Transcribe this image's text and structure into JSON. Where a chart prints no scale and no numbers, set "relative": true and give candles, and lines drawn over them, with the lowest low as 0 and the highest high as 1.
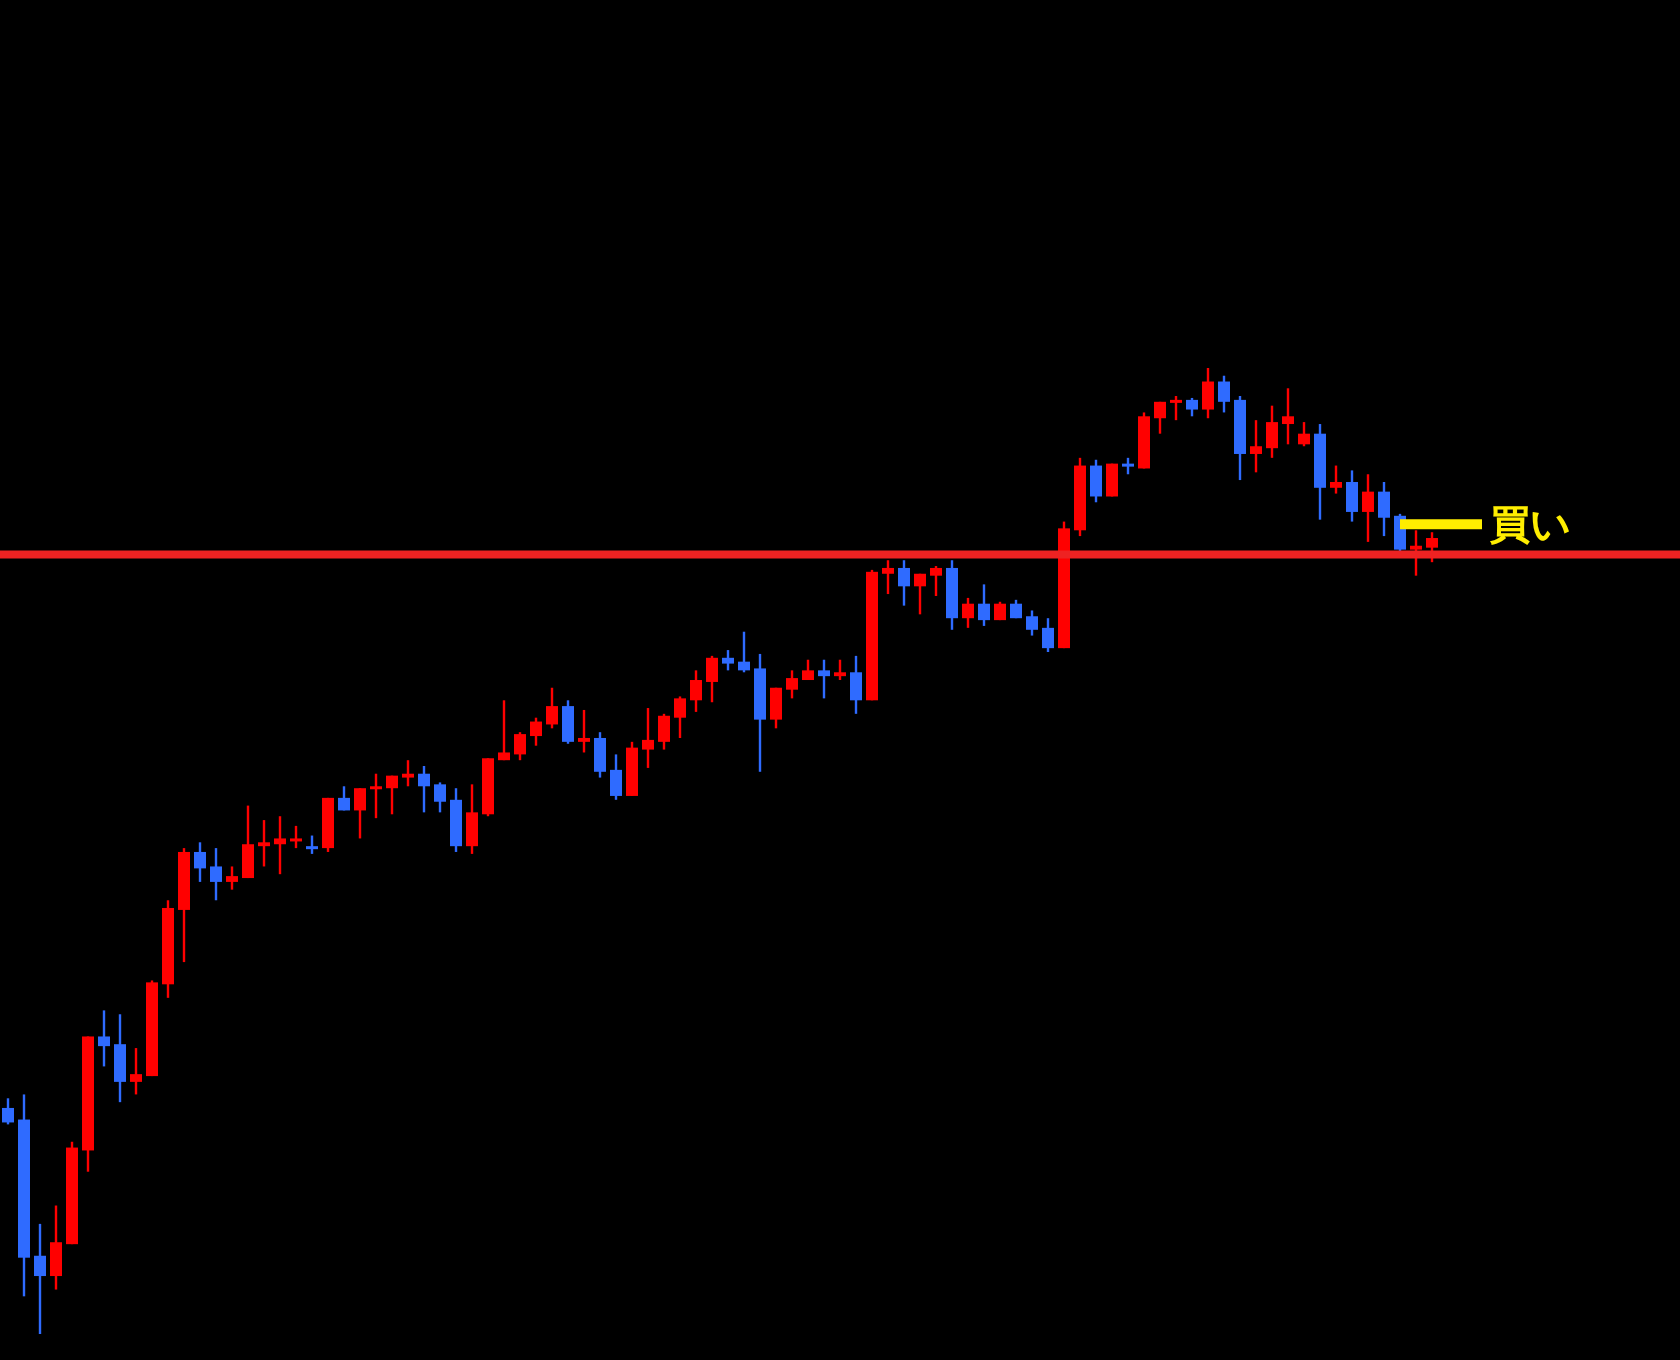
{
  "chart_data": {
    "type": "candlestick",
    "relative": true,
    "categories": [
      null,
      null,
      null,
      null,
      null,
      null,
      null,
      null,
      null,
      null,
      null,
      null,
      null,
      null,
      null,
      null,
      null,
      null,
      null,
      null,
      null,
      null,
      null,
      null,
      null,
      null,
      null,
      null,
      null,
      null,
      null,
      null,
      null,
      null,
      null,
      null,
      null,
      null,
      null,
      null,
      null,
      null,
      null,
      null,
      null,
      null,
      null,
      null,
      null,
      null,
      null,
      null,
      null,
      null,
      null,
      null,
      null,
      null,
      null,
      null,
      null,
      null,
      null,
      null,
      null,
      null,
      null,
      null,
      null,
      null,
      null,
      null,
      null,
      null,
      null,
      null,
      null,
      null,
      null,
      null,
      null,
      null,
      null,
      null,
      null,
      null,
      null,
      null,
      null,
      null
    ],
    "ohlc": [
      [
        0.234,
        0.244,
        0.217,
        0.219
      ],
      [
        0.222,
        0.248,
        0.039,
        0.079
      ],
      [
        0.081,
        0.114,
        0,
        0.06
      ],
      [
        0.06,
        0.133,
        0.046,
        0.095
      ],
      [
        0.093,
        0.199,
        0.093,
        0.193
      ],
      [
        0.19,
        0.308,
        0.168,
        0.308
      ],
      [
        0.308,
        0.335,
        0.277,
        0.298
      ],
      [
        0.3,
        0.331,
        0.24,
        0.261
      ],
      [
        0.261,
        0.296,
        0.248,
        0.269
      ],
      [
        0.267,
        0.366,
        0.267,
        0.364
      ],
      [
        0.362,
        0.449,
        0.348,
        0.441
      ],
      [
        0.439,
        0.503,
        0.385,
        0.499
      ],
      [
        0.499,
        0.509,
        0.468,
        0.482
      ],
      [
        0.484,
        0.503,
        0.449,
        0.468
      ],
      [
        0.468,
        0.484,
        0.46,
        0.474
      ],
      [
        0.472,
        0.547,
        0.472,
        0.507
      ],
      [
        0.505,
        0.532,
        0.484,
        0.509
      ],
      [
        0.507,
        0.536,
        0.476,
        0.513
      ],
      [
        0.511,
        0.526,
        0.503,
        0.513
      ],
      [
        0.505,
        0.516,
        0.497,
        0.503
      ],
      [
        0.503,
        0.555,
        0.499,
        0.555
      ],
      [
        0.555,
        0.567,
        0.542,
        0.542
      ],
      [
        0.542,
        0.565,
        0.513,
        0.565
      ],
      [
        0.565,
        0.58,
        0.534,
        0.567
      ],
      [
        0.565,
        0.578,
        0.538,
        0.578
      ],
      [
        0.576,
        0.594,
        0.567,
        0.58
      ],
      [
        0.58,
        0.588,
        0.54,
        0.567
      ],
      [
        0.569,
        0.571,
        0.54,
        0.551
      ],
      [
        0.553,
        0.565,
        0.499,
        0.505
      ],
      [
        0.505,
        0.569,
        0.497,
        0.54
      ],
      [
        0.538,
        0.596,
        0.536,
        0.596
      ],
      [
        0.594,
        0.656,
        0.594,
        0.602
      ],
      [
        0.6,
        0.623,
        0.594,
        0.621
      ],
      [
        0.619,
        0.638,
        0.609,
        0.634
      ],
      [
        0.631,
        0.669,
        0.627,
        0.65
      ],
      [
        0.65,
        0.656,
        0.611,
        0.613
      ],
      [
        0.613,
        0.646,
        0.602,
        0.617
      ],
      [
        0.617,
        0.623,
        0.576,
        0.582
      ],
      [
        0.584,
        0.6,
        0.553,
        0.557
      ],
      [
        0.557,
        0.613,
        0.557,
        0.607
      ],
      [
        0.605,
        0.648,
        0.586,
        0.615
      ],
      [
        0.613,
        0.642,
        0.605,
        0.64
      ],
      [
        0.638,
        0.66,
        0.617,
        0.658
      ],
      [
        0.656,
        0.687,
        0.644,
        0.677
      ],
      [
        0.675,
        0.702,
        0.654,
        0.7
      ],
      [
        0.7,
        0.708,
        0.687,
        0.694
      ],
      [
        0.696,
        0.727,
        0.685,
        0.687
      ],
      [
        0.689,
        0.704,
        0.582,
        0.636
      ],
      [
        0.636,
        0.669,
        0.627,
        0.669
      ],
      [
        0.667,
        0.687,
        0.658,
        0.679
      ],
      [
        0.677,
        0.698,
        0.677,
        0.687
      ],
      [
        0.687,
        0.698,
        0.658,
        0.681
      ],
      [
        0.681,
        0.698,
        0.677,
        0.685
      ],
      [
        0.685,
        0.702,
        0.642,
        0.656
      ],
      [
        0.656,
        0.791,
        0.656,
        0.789
      ],
      [
        0.787,
        0.801,
        0.766,
        0.793
      ],
      [
        0.793,
        0.801,
        0.754,
        0.774
      ],
      [
        0.774,
        0.787,
        0.745,
        0.787
      ],
      [
        0.785,
        0.795,
        0.764,
        0.793
      ],
      [
        0.793,
        0.801,
        0.729,
        0.741
      ],
      [
        0.741,
        0.762,
        0.731,
        0.756
      ],
      [
        0.756,
        0.776,
        0.733,
        0.739
      ],
      [
        0.739,
        0.758,
        0.739,
        0.756
      ],
      [
        0.756,
        0.76,
        0.741,
        0.741
      ],
      [
        0.743,
        0.749,
        0.723,
        0.729
      ],
      [
        0.731,
        0.741,
        0.706,
        0.71
      ],
      [
        0.71,
        0.841,
        0.71,
        0.834
      ],
      [
        0.832,
        0.907,
        0.826,
        0.899
      ],
      [
        0.899,
        0.905,
        0.861,
        0.867
      ],
      [
        0.867,
        0.901,
        0.867,
        0.901
      ],
      [
        0.901,
        0.907,
        0.89,
        0.899
      ],
      [
        0.896,
        0.954,
        0.896,
        0.95
      ],
      [
        0.948,
        0.965,
        0.932,
        0.965
      ],
      [
        0.965,
        0.971,
        0.946,
        0.967
      ],
      [
        0.967,
        0.969,
        0.95,
        0.957
      ],
      [
        0.957,
        1,
        0.948,
        0.986
      ],
      [
        0.986,
        0.992,
        0.954,
        0.965
      ],
      [
        0.967,
        0.971,
        0.884,
        0.911
      ],
      [
        0.911,
        0.946,
        0.892,
        0.919
      ],
      [
        0.917,
        0.961,
        0.907,
        0.944
      ],
      [
        0.942,
        0.979,
        0.921,
        0.95
      ],
      [
        0.921,
        0.944,
        0.919,
        0.932
      ],
      [
        0.932,
        0.942,
        0.843,
        0.876
      ],
      [
        0.876,
        0.899,
        0.87,
        0.882
      ],
      [
        0.882,
        0.894,
        0.841,
        0.851
      ],
      [
        0.851,
        0.89,
        0.82,
        0.872
      ],
      [
        0.872,
        0.882,
        0.826,
        0.845
      ],
      [
        0.847,
        0.849,
        0.81,
        0.812
      ],
      [
        0.812,
        0.832,
        0.785,
        0.816
      ],
      [
        0.814,
        0.83,
        0.799,
        0.824
      ]
    ],
    "colors": [
      "#2f6bff",
      "#2f6bff",
      "#2f6bff",
      "#ff0000",
      "#ff0000",
      "#ff0000",
      "#2f6bff",
      "#2f6bff",
      "#ff0000",
      "#ff0000",
      "#ff0000",
      "#ff0000",
      "#2f6bff",
      "#2f6bff",
      "#ff0000",
      "#ff0000",
      "#ff0000",
      "#ff0000",
      "#ff0000",
      "#2f6bff",
      "#ff0000",
      "#2f6bff",
      "#ff0000",
      "#ff0000",
      "#ff0000",
      "#ff0000",
      "#2f6bff",
      "#2f6bff",
      "#2f6bff",
      "#ff0000",
      "#ff0000",
      "#ff0000",
      "#ff0000",
      "#ff0000",
      "#ff0000",
      "#2f6bff",
      "#ff0000",
      "#2f6bff",
      "#2f6bff",
      "#ff0000",
      "#ff0000",
      "#ff0000",
      "#ff0000",
      "#ff0000",
      "#ff0000",
      "#2f6bff",
      "#2f6bff",
      "#2f6bff",
      "#ff0000",
      "#ff0000",
      "#ff0000",
      "#2f6bff",
      "#ff0000",
      "#2f6bff",
      "#ff0000",
      "#ff0000",
      "#2f6bff",
      "#ff0000",
      "#ff0000",
      "#2f6bff",
      "#ff0000",
      "#2f6bff",
      "#ff0000",
      "#2f6bff",
      "#2f6bff",
      "#2f6bff",
      "#ff0000",
      "#ff0000",
      "#2f6bff",
      "#ff0000",
      "#2f6bff",
      "#ff0000",
      "#ff0000",
      "#ff0000",
      "#2f6bff",
      "#ff0000",
      "#2f6bff",
      "#2f6bff",
      "#ff0000",
      "#ff0000",
      "#ff0000",
      "#ff0000",
      "#2f6bff",
      "#ff0000",
      "#2f6bff",
      "#ff0000",
      "#2f6bff",
      "#2f6bff",
      "#ff0000",
      "#ff0000"
    ],
    "ref_lines": [
      {
        "axis": "y",
        "value": 0.807,
        "color": "#ee2222"
      }
    ],
    "annotations": [
      "買い"
    ]
  }
}
